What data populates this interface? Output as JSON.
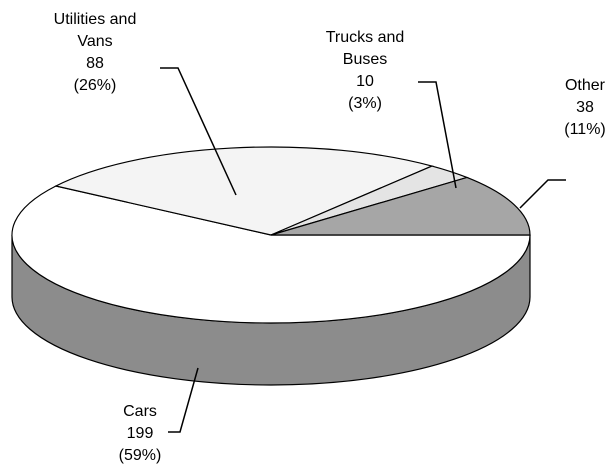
{
  "chart_data": {
    "type": "pie3d",
    "categories": [
      "Cars",
      "Utilities and Vans",
      "Trucks and Buses",
      "Other"
    ],
    "values": [
      199,
      88,
      10,
      38
    ],
    "percent_labels": [
      "(59%)",
      "(26%)",
      "(3%)",
      "(11%)"
    ],
    "colors": [
      "#ffffff",
      "#f4f4f4",
      "#e4e4e4",
      "#a6a6a6"
    ]
  }
}
